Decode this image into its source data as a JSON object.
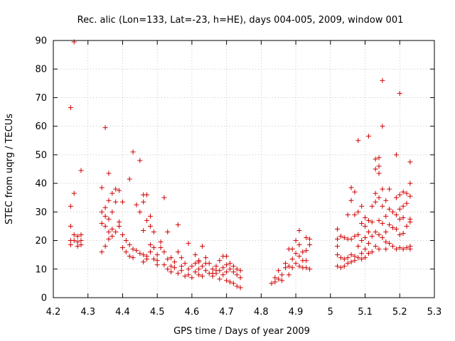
{
  "chart_data": {
    "type": "scatter",
    "title": "Rec. alic (Lon=133, Lat=-23, h=HE), days 004-005, 2009, window 001",
    "xlabel": "GPS time / Days of year 2009",
    "ylabel": "STEC from uqrg / TECUs",
    "xlim": [
      4.2,
      5.3
    ],
    "ylim": [
      0,
      90
    ],
    "xticks": [
      4.2,
      4.3,
      4.4,
      4.5,
      4.6,
      4.7,
      4.8,
      4.9,
      5.0,
      5.1,
      5.2,
      5.3
    ],
    "xtick_labels": [
      "4.2",
      "4.3",
      "4.4",
      "4.5",
      "4.6",
      "4.7",
      "4.8",
      "4.9",
      "5",
      "5.1",
      "5.2",
      "5.3"
    ],
    "yticks": [
      0,
      10,
      20,
      30,
      40,
      50,
      60,
      70,
      80,
      90
    ],
    "ytick_labels": [
      "0",
      "10",
      "20",
      "30",
      "40",
      "50",
      "60",
      "70",
      "80",
      "90"
    ],
    "grid": true,
    "marker": "+",
    "color": "#d00000",
    "series": [
      {
        "name": "STEC",
        "points": [
          [
            4.25,
            66.5
          ],
          [
            4.26,
            89.5
          ],
          [
            4.25,
            32
          ],
          [
            4.26,
            36.5
          ],
          [
            4.28,
            44.5
          ],
          [
            4.25,
            25
          ],
          [
            4.25,
            20
          ],
          [
            4.25,
            18.5
          ],
          [
            4.27,
            21.5
          ],
          [
            4.27,
            19.5
          ],
          [
            4.27,
            18
          ],
          [
            4.28,
            22
          ],
          [
            4.28,
            20
          ],
          [
            4.28,
            18.5
          ],
          [
            4.26,
            22
          ],
          [
            4.26,
            20
          ],
          [
            4.35,
            59.5
          ],
          [
            4.36,
            43.5
          ],
          [
            4.34,
            38.5
          ],
          [
            4.37,
            36.5
          ],
          [
            4.38,
            38
          ],
          [
            4.36,
            34
          ],
          [
            4.35,
            31.5
          ],
          [
            4.34,
            30
          ],
          [
            4.35,
            28.5
          ],
          [
            4.36,
            27.5
          ],
          [
            4.34,
            26
          ],
          [
            4.35,
            25
          ],
          [
            4.37,
            30
          ],
          [
            4.38,
            33.5
          ],
          [
            4.37,
            24
          ],
          [
            4.36,
            23
          ],
          [
            4.38,
            23
          ],
          [
            4.37,
            21.5
          ],
          [
            4.36,
            20.5
          ],
          [
            4.35,
            18
          ],
          [
            4.34,
            16
          ],
          [
            4.39,
            26.5
          ],
          [
            4.39,
            25
          ],
          [
            4.4,
            22
          ],
          [
            4.4,
            33.5
          ],
          [
            4.39,
            37.5
          ],
          [
            4.42,
            41.5
          ],
          [
            4.43,
            51
          ],
          [
            4.45,
            48
          ],
          [
            4.44,
            32.5
          ],
          [
            4.46,
            36
          ],
          [
            4.47,
            36
          ],
          [
            4.46,
            33.5
          ],
          [
            4.45,
            30
          ],
          [
            4.48,
            28.5
          ],
          [
            4.47,
            27
          ],
          [
            4.48,
            25
          ],
          [
            4.46,
            23.5
          ],
          [
            4.49,
            23
          ],
          [
            4.41,
            20
          ],
          [
            4.42,
            18.5
          ],
          [
            4.4,
            17.5
          ],
          [
            4.41,
            16
          ],
          [
            4.43,
            17
          ],
          [
            4.44,
            16.5
          ],
          [
            4.42,
            14.5
          ],
          [
            4.43,
            14
          ],
          [
            4.45,
            15.5
          ],
          [
            4.46,
            15
          ],
          [
            4.47,
            14.5
          ],
          [
            4.48,
            18.5
          ],
          [
            4.49,
            17.5
          ],
          [
            4.48,
            16
          ],
          [
            4.47,
            13.5
          ],
          [
            4.46,
            12.5
          ],
          [
            4.49,
            13.5
          ],
          [
            4.5,
            15
          ],
          [
            4.5,
            13
          ],
          [
            4.5,
            11.5
          ],
          [
            4.51,
            19.5
          ],
          [
            4.51,
            17.5
          ],
          [
            4.52,
            35
          ],
          [
            4.53,
            23
          ],
          [
            4.52,
            16
          ],
          [
            4.53,
            13.5
          ],
          [
            4.52,
            11.5
          ],
          [
            4.53,
            10
          ],
          [
            4.54,
            14
          ],
          [
            4.54,
            11
          ],
          [
            4.54,
            9
          ],
          [
            4.55,
            12.5
          ],
          [
            4.55,
            10.5
          ],
          [
            4.56,
            25.5
          ],
          [
            4.56,
            16
          ],
          [
            4.56,
            8.5
          ],
          [
            4.57,
            14
          ],
          [
            4.57,
            11
          ],
          [
            4.57,
            9.5
          ],
          [
            4.58,
            7.5
          ],
          [
            4.58,
            12
          ],
          [
            4.59,
            19
          ],
          [
            4.59,
            10
          ],
          [
            4.59,
            8
          ],
          [
            4.6,
            11
          ],
          [
            4.6,
            7
          ],
          [
            4.61,
            15
          ],
          [
            4.61,
            12
          ],
          [
            4.61,
            9
          ],
          [
            4.62,
            13
          ],
          [
            4.62,
            10
          ],
          [
            4.62,
            8
          ],
          [
            4.63,
            18
          ],
          [
            4.63,
            11
          ],
          [
            4.63,
            7.5
          ],
          [
            4.64,
            14
          ],
          [
            4.64,
            9.5
          ],
          [
            4.65,
            12
          ],
          [
            4.65,
            8.5
          ],
          [
            4.66,
            10
          ],
          [
            4.66,
            7.5
          ],
          [
            4.67,
            11
          ],
          [
            4.67,
            8.5
          ],
          [
            4.68,
            13
          ],
          [
            4.68,
            9.5
          ],
          [
            4.68,
            6.5
          ],
          [
            4.69,
            14.5
          ],
          [
            4.69,
            10.5
          ],
          [
            4.69,
            8
          ],
          [
            4.7,
            14.5
          ],
          [
            4.7,
            11.5
          ],
          [
            4.7,
            9
          ],
          [
            4.7,
            6
          ],
          [
            4.71,
            12
          ],
          [
            4.71,
            10
          ],
          [
            4.71,
            5.5
          ],
          [
            4.72,
            11
          ],
          [
            4.72,
            9
          ],
          [
            4.72,
            5
          ],
          [
            4.73,
            10
          ],
          [
            4.73,
            8
          ],
          [
            4.73,
            4
          ],
          [
            4.74,
            9.5
          ],
          [
            4.74,
            7
          ],
          [
            4.74,
            3.5
          ],
          [
            4.62,
            12.5
          ],
          [
            4.64,
            12
          ],
          [
            4.66,
            8.5
          ],
          [
            4.67,
            9.5
          ],
          [
            4.83,
            5
          ],
          [
            4.84,
            5.5
          ],
          [
            4.84,
            7
          ],
          [
            4.85,
            9.5
          ],
          [
            4.85,
            6.5
          ],
          [
            4.86,
            8
          ],
          [
            4.86,
            6
          ],
          [
            4.87,
            12
          ],
          [
            4.87,
            10.5
          ],
          [
            4.88,
            17
          ],
          [
            4.88,
            11
          ],
          [
            4.88,
            8
          ],
          [
            4.89,
            13.5
          ],
          [
            4.89,
            10.5
          ],
          [
            4.9,
            20
          ],
          [
            4.9,
            15.5
          ],
          [
            4.9,
            12
          ],
          [
            4.91,
            23.5
          ],
          [
            4.91,
            18.5
          ],
          [
            4.91,
            14.5
          ],
          [
            4.91,
            11
          ],
          [
            4.92,
            16
          ],
          [
            4.92,
            13
          ],
          [
            4.92,
            10.5
          ],
          [
            4.93,
            21
          ],
          [
            4.93,
            16.5
          ],
          [
            4.93,
            13
          ],
          [
            4.94,
            20.5
          ],
          [
            4.94,
            18.5
          ],
          [
            4.94,
            10
          ],
          [
            4.89,
            17
          ],
          [
            4.93,
            10.5
          ],
          [
            5.02,
            24
          ],
          [
            5.02,
            20.5
          ],
          [
            5.02,
            18
          ],
          [
            5.02,
            15
          ],
          [
            5.02,
            11
          ],
          [
            5.03,
            21.5
          ],
          [
            5.03,
            14
          ],
          [
            5.03,
            10.5
          ],
          [
            5.04,
            21
          ],
          [
            5.04,
            13.5
          ],
          [
            5.04,
            11
          ],
          [
            5.05,
            29
          ],
          [
            5.05,
            20.5
          ],
          [
            5.05,
            14
          ],
          [
            5.05,
            12
          ],
          [
            5.06,
            38.5
          ],
          [
            5.06,
            34
          ],
          [
            5.06,
            20.5
          ],
          [
            5.06,
            15
          ],
          [
            5.06,
            12.5
          ],
          [
            5.07,
            37
          ],
          [
            5.07,
            29
          ],
          [
            5.07,
            21.5
          ],
          [
            5.07,
            14.5
          ],
          [
            5.07,
            13
          ],
          [
            5.08,
            55
          ],
          [
            5.08,
            30
          ],
          [
            5.08,
            22
          ],
          [
            5.08,
            18
          ],
          [
            5.08,
            14
          ],
          [
            5.09,
            32
          ],
          [
            5.09,
            26
          ],
          [
            5.09,
            20
          ],
          [
            5.09,
            15.5
          ],
          [
            5.09,
            13.5
          ],
          [
            5.1,
            28
          ],
          [
            5.1,
            25
          ],
          [
            5.1,
            21
          ],
          [
            5.1,
            17
          ],
          [
            5.1,
            14
          ],
          [
            5.11,
            56.5
          ],
          [
            5.11,
            27
          ],
          [
            5.11,
            23
          ],
          [
            5.11,
            19
          ],
          [
            5.11,
            15.5
          ],
          [
            5.12,
            32
          ],
          [
            5.12,
            26.5
          ],
          [
            5.12,
            21.5
          ],
          [
            5.12,
            16
          ],
          [
            5.13,
            48.5
          ],
          [
            5.13,
            45
          ],
          [
            5.13,
            36.5
          ],
          [
            5.13,
            33.5
          ],
          [
            5.13,
            23
          ],
          [
            5.13,
            18
          ],
          [
            5.14,
            49
          ],
          [
            5.14,
            46
          ],
          [
            5.14,
            43.5
          ],
          [
            5.14,
            35
          ],
          [
            5.14,
            27
          ],
          [
            5.14,
            22
          ],
          [
            5.14,
            17
          ],
          [
            5.15,
            76
          ],
          [
            5.15,
            60
          ],
          [
            5.15,
            38
          ],
          [
            5.15,
            32
          ],
          [
            5.15,
            26
          ],
          [
            5.15,
            21
          ],
          [
            5.16,
            34
          ],
          [
            5.16,
            28.5
          ],
          [
            5.16,
            23
          ],
          [
            5.16,
            19.5
          ],
          [
            5.16,
            17
          ],
          [
            5.17,
            38
          ],
          [
            5.17,
            31
          ],
          [
            5.17,
            25.5
          ],
          [
            5.17,
            19
          ],
          [
            5.18,
            30
          ],
          [
            5.18,
            24.5
          ],
          [
            5.18,
            18
          ],
          [
            5.19,
            50
          ],
          [
            5.19,
            35
          ],
          [
            5.19,
            29
          ],
          [
            5.19,
            24
          ],
          [
            5.19,
            17
          ],
          [
            5.2,
            71.5
          ],
          [
            5.2,
            36
          ],
          [
            5.2,
            31
          ],
          [
            5.2,
            27.5
          ],
          [
            5.2,
            22
          ],
          [
            5.2,
            17.5
          ],
          [
            5.21,
            37
          ],
          [
            5.21,
            32
          ],
          [
            5.21,
            28
          ],
          [
            5.21,
            22.5
          ],
          [
            5.21,
            17
          ],
          [
            5.22,
            36.5
          ],
          [
            5.22,
            33
          ],
          [
            5.22,
            25
          ],
          [
            5.22,
            17.5
          ],
          [
            5.23,
            47.5
          ],
          [
            5.23,
            40
          ],
          [
            5.23,
            35.5
          ],
          [
            5.23,
            27.5
          ],
          [
            5.23,
            26.5
          ],
          [
            5.23,
            18
          ],
          [
            5.23,
            17
          ]
        ]
      }
    ]
  }
}
